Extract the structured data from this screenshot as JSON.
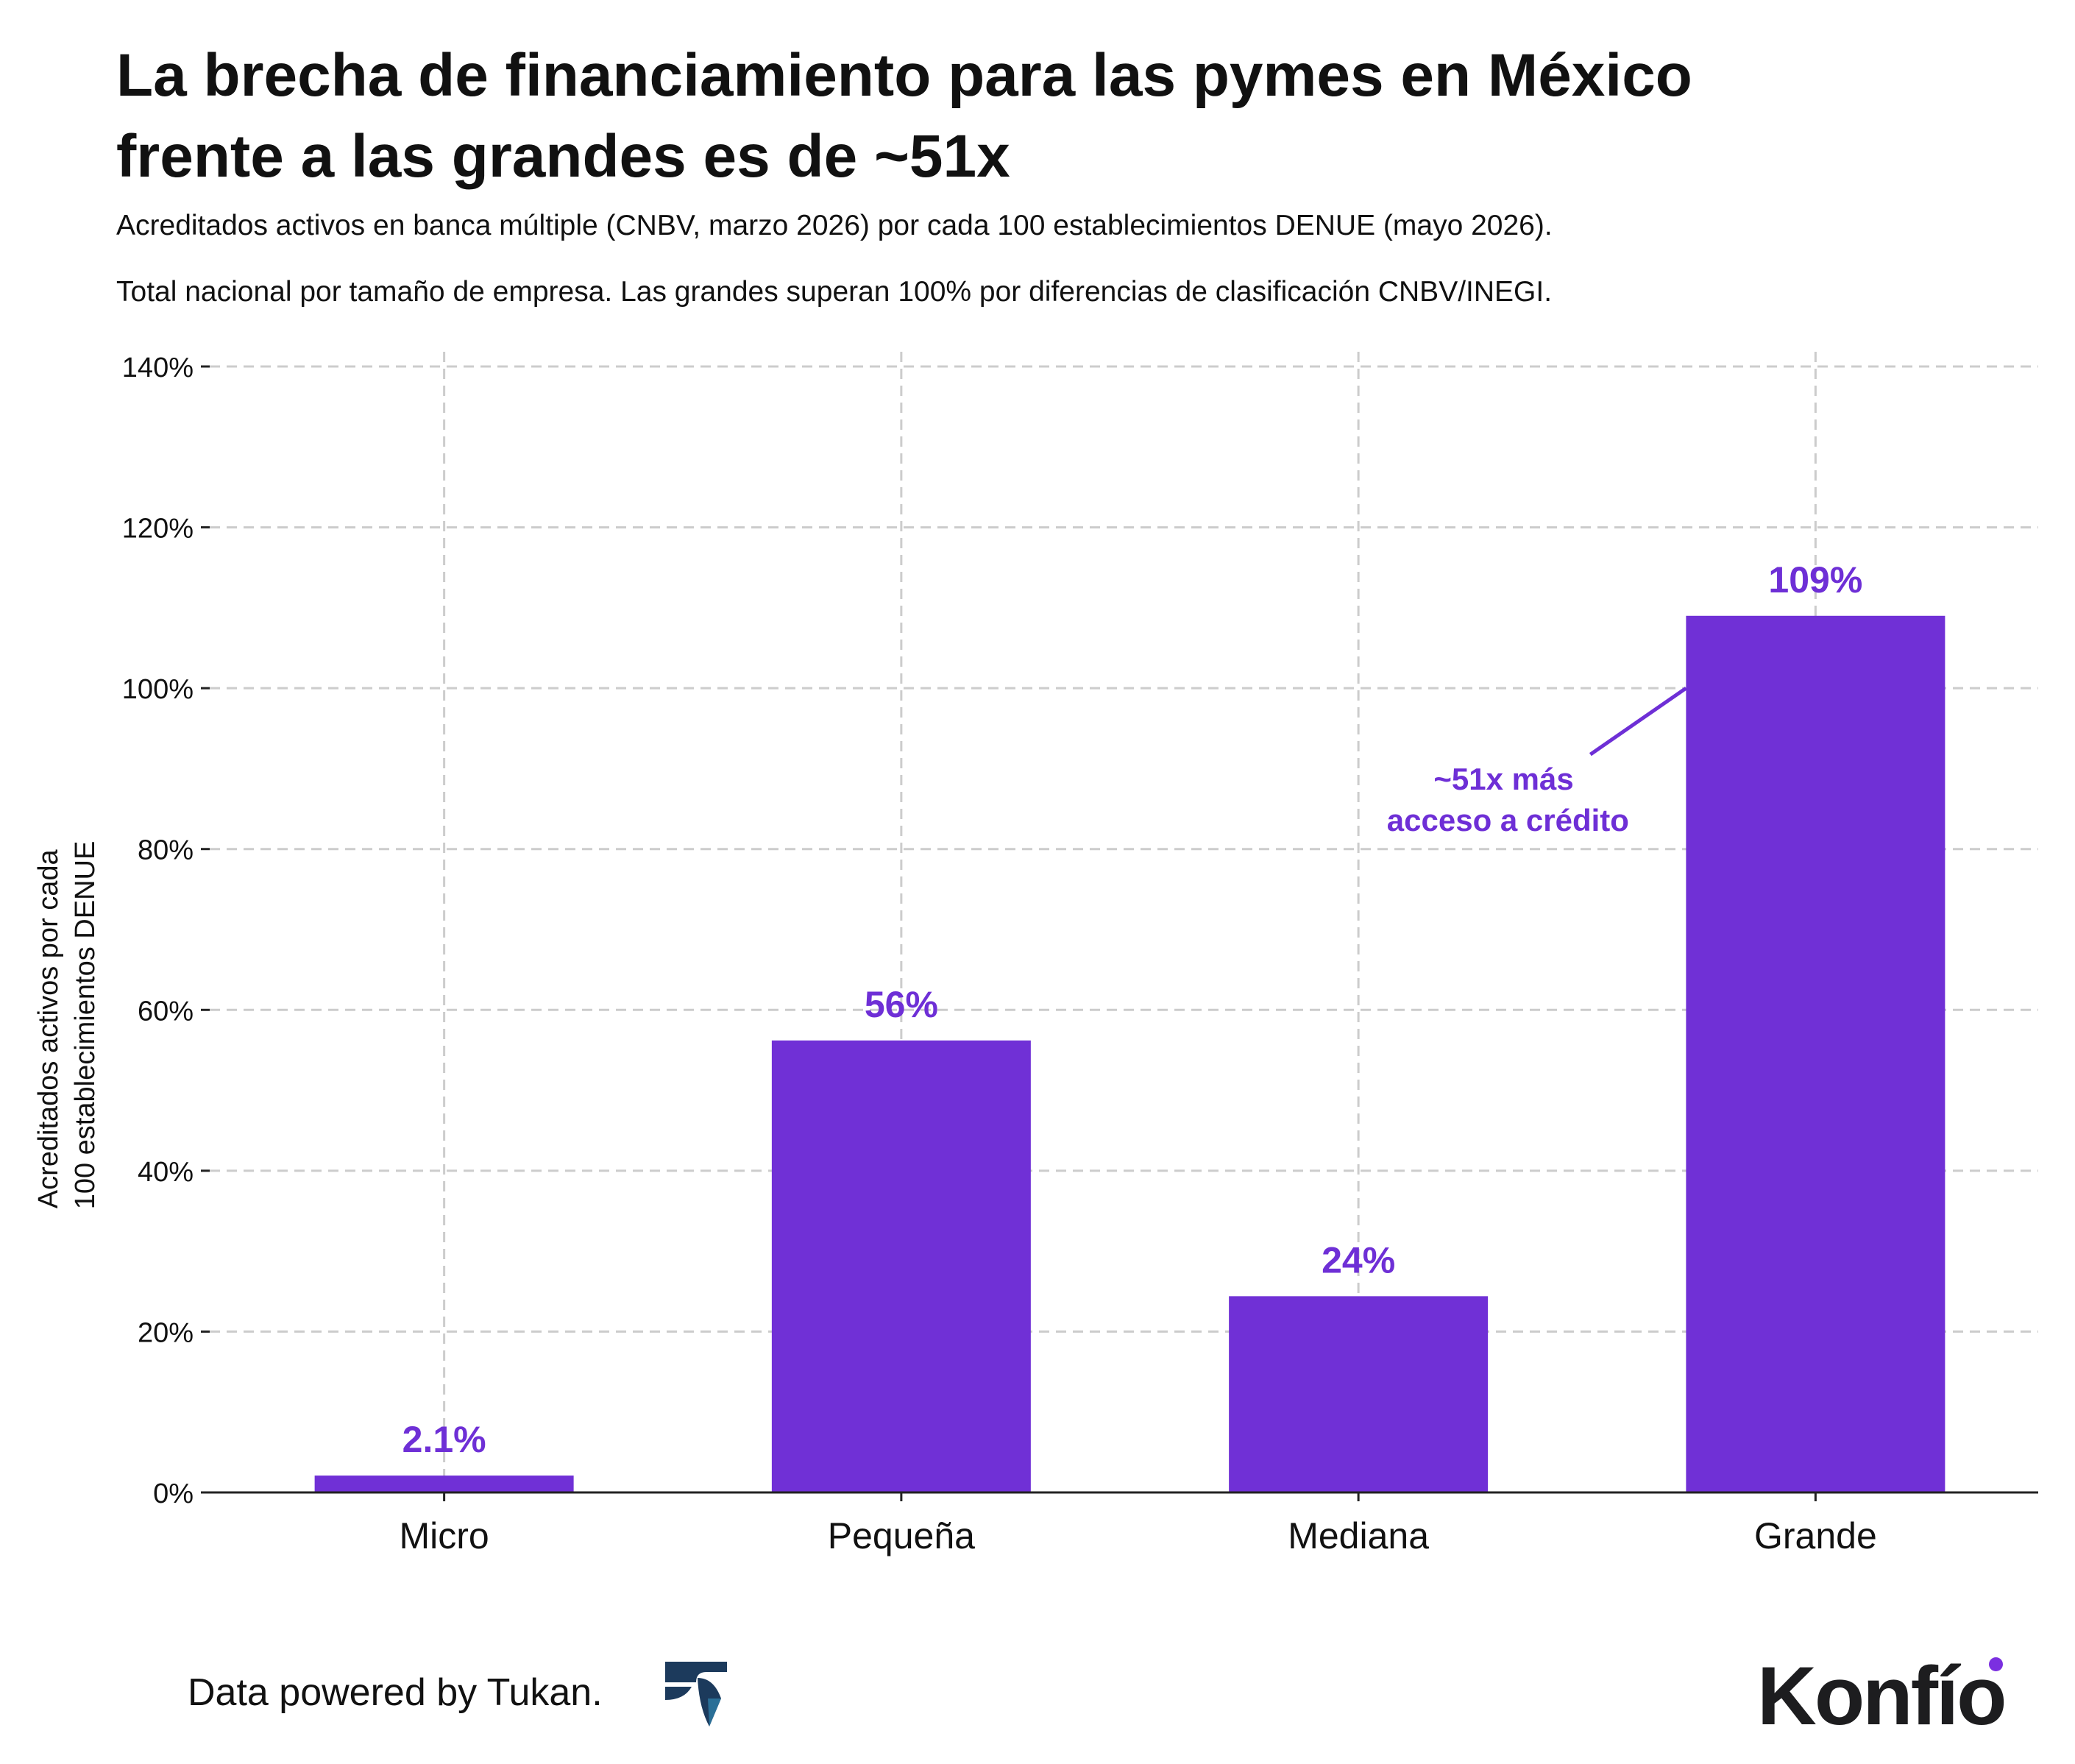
{
  "header": {
    "title_line1": "La brecha de financiamiento para las pymes en México",
    "title_line2": "frente a las grandes es de ~51x",
    "subtitle_line1": "Acreditados activos en banca múltiple (CNBV, marzo 2026) por cada 100 establecimientos DENUE (mayo 2026).",
    "subtitle_line2": "Total nacional por tamaño de empresa. Las grandes superan 100% por diferencias de clasificación CNBV/INEGI."
  },
  "chart_data": {
    "type": "bar",
    "categories": [
      "Micro",
      "Pequeña",
      "Mediana",
      "Grande"
    ],
    "values": [
      2.1,
      56.2,
      24.4,
      109
    ],
    "value_labels": [
      "2.1%",
      "56%",
      "24%",
      "109%"
    ],
    "ylabel_line1": "Acreditados activos por cada",
    "ylabel_line2": "100 establecimientos DENUE",
    "ylim": [
      0,
      140
    ],
    "yticks": [
      0,
      20,
      40,
      60,
      80,
      100,
      120,
      140
    ],
    "ytick_labels": [
      "0%",
      "20%",
      "40%",
      "60%",
      "80%",
      "100%",
      "120%",
      "140%"
    ],
    "grid": true,
    "annotation": {
      "line1": "~51x más",
      "line2": "acceso a crédito",
      "target_category": "Grande",
      "target_value": 100
    },
    "colors": {
      "bar": "#7030d6",
      "label": "#6e2fd6",
      "grid": "#cccccc",
      "axis": "#222222"
    }
  },
  "footer": {
    "credit": "Data powered by Tukan.",
    "credit_icon": "tukan-bird-icon",
    "brand": "Konfío"
  }
}
